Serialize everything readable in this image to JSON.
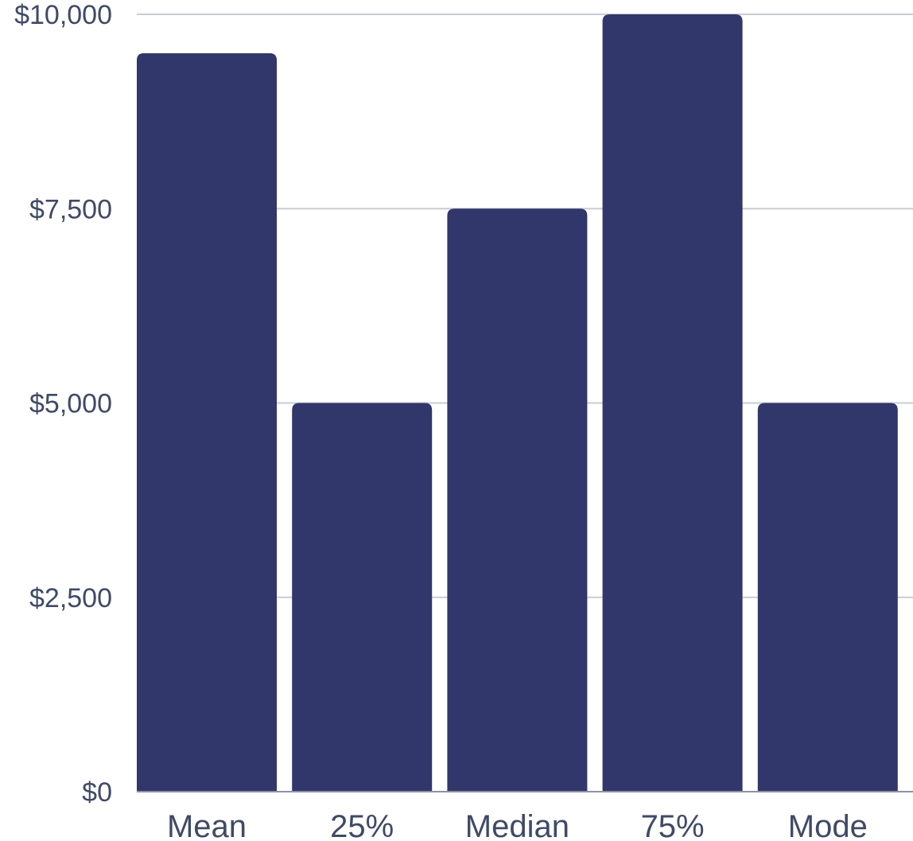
{
  "chart_data": {
    "type": "bar",
    "categories": [
      "Mean",
      "25%",
      "Median",
      "75%",
      "Mode"
    ],
    "values": [
      9500,
      5000,
      7500,
      10000,
      5000
    ],
    "title": "",
    "xlabel": "",
    "ylabel": "",
    "ylim": [
      0,
      10000
    ],
    "y_ticks": [
      0,
      2500,
      5000,
      7500,
      10000
    ],
    "y_tick_labels": [
      "$0",
      "$2,500",
      "$5,000",
      "$7,500",
      "$10,000"
    ],
    "grid": true,
    "legend": "none"
  },
  "colors": {
    "bar": "#31366b",
    "text": "#3f4a66",
    "grid": "#c9ccd3",
    "axis": "#8b93a3"
  }
}
